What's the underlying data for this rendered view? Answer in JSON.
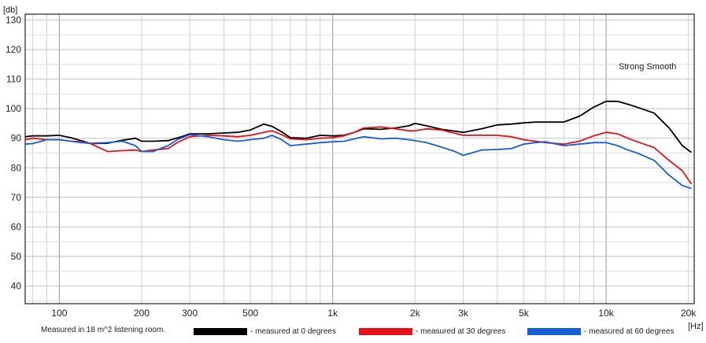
{
  "chart_data": {
    "type": "line",
    "y_unit_label": "[db]",
    "x_unit_label": "[Hz]",
    "x_scale": "log",
    "xlim": [
      75,
      21000
    ],
    "ylim": [
      34,
      132
    ],
    "y_ticks": [
      40,
      50,
      60,
      70,
      80,
      90,
      100,
      110,
      120,
      130
    ],
    "x_tick_values": [
      100,
      200,
      300,
      500,
      1000,
      2000,
      3000,
      5000,
      10000,
      20000
    ],
    "x_tick_labels": [
      "100",
      "200",
      "300",
      "500",
      "1k",
      "2k",
      "3k",
      "5k",
      "10k",
      "20k"
    ],
    "grid": true,
    "annotation": "Strong Smooth",
    "footnote": "Measured in 18 m^2 listening room.",
    "series": [
      {
        "name": "- measured at 0 degrees",
        "color": "#000000",
        "points": [
          [
            75,
            90.5
          ],
          [
            80,
            90.8
          ],
          [
            90,
            90.8
          ],
          [
            100,
            91
          ],
          [
            110,
            90.2
          ],
          [
            120,
            89.2
          ],
          [
            130,
            88.2
          ],
          [
            150,
            88.3
          ],
          [
            170,
            89.3
          ],
          [
            190,
            90
          ],
          [
            200,
            89
          ],
          [
            220,
            89
          ],
          [
            250,
            89.2
          ],
          [
            280,
            90.5
          ],
          [
            300,
            91.5
          ],
          [
            350,
            91.5
          ],
          [
            400,
            91.8
          ],
          [
            450,
            92
          ],
          [
            500,
            92.8
          ],
          [
            560,
            94.8
          ],
          [
            600,
            94
          ],
          [
            650,
            92.2
          ],
          [
            700,
            90.2
          ],
          [
            800,
            90
          ],
          [
            900,
            91
          ],
          [
            1000,
            90.8
          ],
          [
            1100,
            91
          ],
          [
            1200,
            92
          ],
          [
            1300,
            93.2
          ],
          [
            1500,
            93
          ],
          [
            1700,
            93.5
          ],
          [
            1900,
            94.2
          ],
          [
            2000,
            95
          ],
          [
            2200,
            94.2
          ],
          [
            2500,
            93
          ],
          [
            3000,
            92
          ],
          [
            3500,
            93.2
          ],
          [
            4000,
            94.5
          ],
          [
            4500,
            94.8
          ],
          [
            5000,
            95.2
          ],
          [
            5500,
            95.5
          ],
          [
            6000,
            95.5
          ],
          [
            7000,
            95.5
          ],
          [
            8000,
            97.5
          ],
          [
            9000,
            100.5
          ],
          [
            10000,
            102.5
          ],
          [
            11000,
            102.5
          ],
          [
            12000,
            101.5
          ],
          [
            13000,
            100.5
          ],
          [
            15000,
            98.5
          ],
          [
            17000,
            93.5
          ],
          [
            19000,
            87.5
          ],
          [
            20500,
            85.2
          ]
        ]
      },
      {
        "name": "- measured at 30 degrees",
        "color": "#e3121b",
        "points": [
          [
            75,
            89.5
          ],
          [
            80,
            90
          ],
          [
            90,
            89.5
          ],
          [
            100,
            89.5
          ],
          [
            110,
            89
          ],
          [
            120,
            88.8
          ],
          [
            130,
            88.2
          ],
          [
            150,
            85.5
          ],
          [
            170,
            85.8
          ],
          [
            190,
            86
          ],
          [
            200,
            85.5
          ],
          [
            220,
            86
          ],
          [
            250,
            86.5
          ],
          [
            270,
            88.5
          ],
          [
            300,
            90.5
          ],
          [
            350,
            91
          ],
          [
            400,
            90.8
          ],
          [
            450,
            90.5
          ],
          [
            500,
            91
          ],
          [
            560,
            92
          ],
          [
            600,
            92.5
          ],
          [
            650,
            91.2
          ],
          [
            700,
            89.8
          ],
          [
            800,
            89.5
          ],
          [
            900,
            90
          ],
          [
            1000,
            90.2
          ],
          [
            1100,
            90.8
          ],
          [
            1200,
            92
          ],
          [
            1300,
            93.5
          ],
          [
            1500,
            93.8
          ],
          [
            1700,
            93.2
          ],
          [
            1900,
            92.5
          ],
          [
            2000,
            92.5
          ],
          [
            2200,
            93.2
          ],
          [
            2500,
            92.8
          ],
          [
            3000,
            91
          ],
          [
            3500,
            91
          ],
          [
            4000,
            91
          ],
          [
            4500,
            90.5
          ],
          [
            5000,
            89.5
          ],
          [
            5500,
            89
          ],
          [
            6000,
            88.5
          ],
          [
            7000,
            88
          ],
          [
            8000,
            89
          ],
          [
            9000,
            90.8
          ],
          [
            10000,
            92
          ],
          [
            11000,
            91.5
          ],
          [
            12000,
            90
          ],
          [
            13000,
            88.8
          ],
          [
            15000,
            86.8
          ],
          [
            17000,
            82.5
          ],
          [
            19000,
            79
          ],
          [
            20500,
            74.5
          ]
        ]
      },
      {
        "name": "- measured at 60 degrees",
        "color": "#1560d6",
        "points": [
          [
            75,
            88
          ],
          [
            80,
            88.2
          ],
          [
            90,
            89.5
          ],
          [
            100,
            89.5
          ],
          [
            110,
            89
          ],
          [
            120,
            88.5
          ],
          [
            130,
            88.3
          ],
          [
            150,
            88.5
          ],
          [
            170,
            89
          ],
          [
            190,
            87.5
          ],
          [
            200,
            85.5
          ],
          [
            220,
            85.5
          ],
          [
            250,
            87.5
          ],
          [
            270,
            89.5
          ],
          [
            300,
            91.2
          ],
          [
            350,
            90.5
          ],
          [
            400,
            89.5
          ],
          [
            450,
            89
          ],
          [
            500,
            89.5
          ],
          [
            560,
            90
          ],
          [
            600,
            91
          ],
          [
            650,
            89.5
          ],
          [
            700,
            87.5
          ],
          [
            800,
            88
          ],
          [
            900,
            88.5
          ],
          [
            1000,
            88.8
          ],
          [
            1100,
            89
          ],
          [
            1200,
            89.8
          ],
          [
            1300,
            90.5
          ],
          [
            1500,
            89.8
          ],
          [
            1700,
            90
          ],
          [
            1900,
            89.5
          ],
          [
            2000,
            89.2
          ],
          [
            2200,
            88.5
          ],
          [
            2500,
            87
          ],
          [
            2800,
            85.5
          ],
          [
            3000,
            84.2
          ],
          [
            3500,
            86
          ],
          [
            4000,
            86.2
          ],
          [
            4500,
            86.5
          ],
          [
            5000,
            88
          ],
          [
            5500,
            88.5
          ],
          [
            6000,
            88.8
          ],
          [
            7000,
            87.5
          ],
          [
            8000,
            88
          ],
          [
            9000,
            88.5
          ],
          [
            10000,
            88.5
          ],
          [
            11000,
            87.5
          ],
          [
            12000,
            86
          ],
          [
            13000,
            85
          ],
          [
            15000,
            82.5
          ],
          [
            17000,
            77.5
          ],
          [
            19000,
            74
          ],
          [
            20500,
            73
          ]
        ]
      }
    ]
  }
}
